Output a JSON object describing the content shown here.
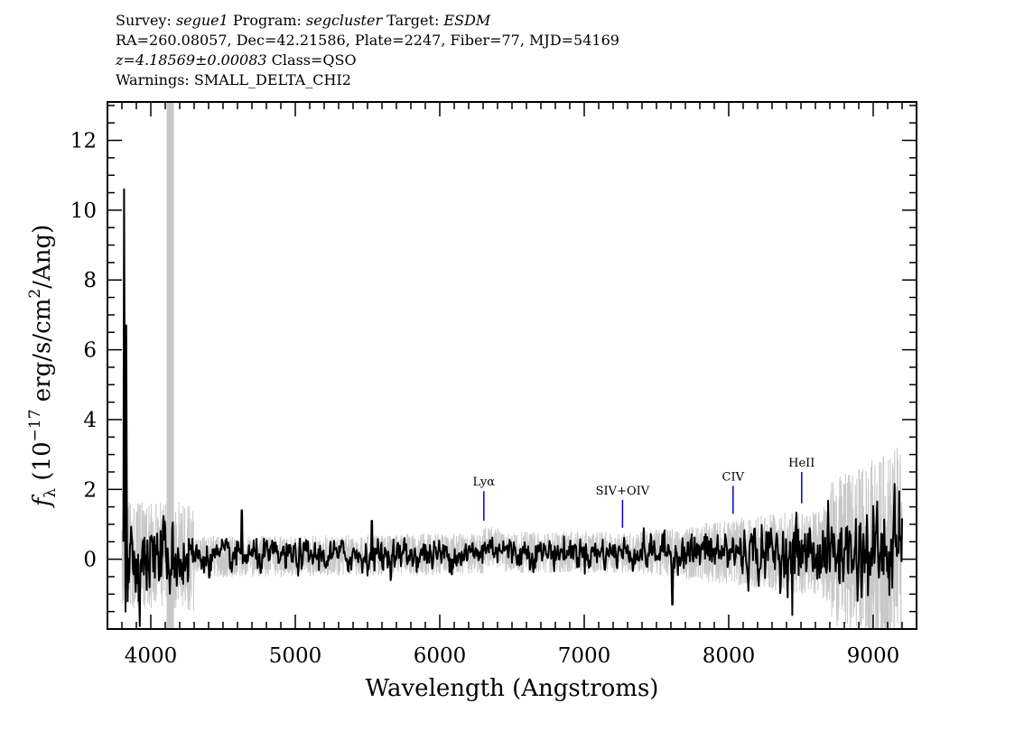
{
  "header": {
    "line1": {
      "survey_label": "Survey: ",
      "survey": "segue1",
      "program_label": " Program: ",
      "program": "segcluster",
      "target_label": " Target: ",
      "target": "ESDM"
    },
    "line2": "RA=260.08057, Dec=42.21586, Plate=2247, Fiber=77, MJD=54169",
    "line3": {
      "redshift": "z=4.18569±0.00083",
      "class": " Class=QSO"
    },
    "line4": "Warnings: SMALL_DELTA_CHI2"
  },
  "chart_data": {
    "type": "line",
    "xlabel": "Wavelength (Angstroms)",
    "ylabel": {
      "prefix": "f",
      "sub": "λ",
      "open": " (10",
      "exp1": "−17",
      "mid": " erg/s/cm",
      "exp2": "2",
      "close": "/Ang)"
    },
    "xlim": [
      3700,
      9300
    ],
    "ylim": [
      -2,
      13.1
    ],
    "xticks": [
      4000,
      5000,
      6000,
      7000,
      8000,
      9000
    ],
    "yticks": [
      0,
      2,
      4,
      6,
      8,
      10,
      12
    ],
    "masked_band": [
      4110,
      4160
    ],
    "spike": {
      "x": [
        3810,
        3815,
        3820,
        3825,
        3830,
        3835,
        3840
      ],
      "y": [
        0.5,
        10.6,
        4.0,
        -1.5,
        6.7,
        0.8,
        -1.2
      ]
    },
    "lines": [
      {
        "name": "Lyα",
        "wavelength": 6305,
        "y_low": 1.1,
        "y_high": 1.95
      },
      {
        "name": "SIV+OIV",
        "wavelength": 7265,
        "y_low": 0.9,
        "y_high": 1.7
      },
      {
        "name": "CIV",
        "wavelength": 8030,
        "y_low": 1.3,
        "y_high": 2.1
      },
      {
        "name": "HeII",
        "wavelength": 8505,
        "y_low": 1.6,
        "y_high": 2.5
      }
    ],
    "series": [
      {
        "role": "flux",
        "color": "#000000"
      },
      {
        "role": "error",
        "color": "#c8c8c8"
      }
    ],
    "line_marker_color": "#0000cc",
    "masked_color": "#c8c8c8"
  }
}
